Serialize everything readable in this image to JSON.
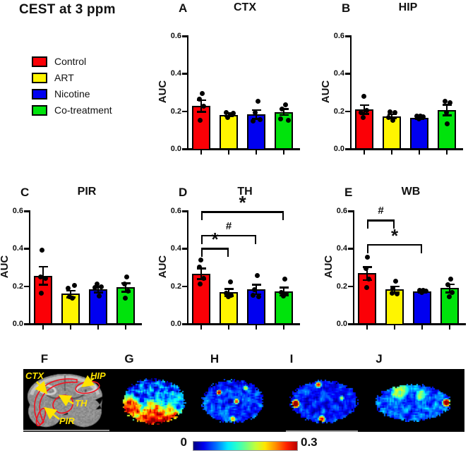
{
  "figure_title": "CEST at 3 ppm",
  "legend": {
    "items": [
      {
        "label": "Control",
        "color": "#fb0006"
      },
      {
        "label": "ART",
        "color": "#fff500"
      },
      {
        "label": "Nicotine",
        "color": "#0000f0"
      },
      {
        "label": "Co-treatment",
        "color": "#00e30c"
      }
    ]
  },
  "chart_data": [
    {
      "type": "bar",
      "panel": "A",
      "title": "CTX",
      "ylabel": "AUC",
      "ylim": [
        0,
        0.6
      ],
      "yticks": [
        "0.0",
        "0.2",
        "0.4",
        "0.6"
      ],
      "grid": false,
      "categories": [
        "Control",
        "ART",
        "Nicotine",
        "Co-treatment"
      ],
      "values": [
        0.225,
        0.178,
        0.18,
        0.193
      ],
      "sem": [
        0.031,
        0.008,
        0.023,
        0.016
      ],
      "points": [
        [
          [
            0.29,
            1
          ],
          [
            0.26,
            -3
          ],
          [
            0.225,
            3
          ],
          [
            0.15,
            -2
          ]
        ],
        [
          [
            0.19,
            -4
          ],
          [
            0.187,
            6
          ],
          [
            0.18,
            2
          ],
          [
            0.165,
            -2
          ]
        ],
        [
          [
            0.25,
            2
          ],
          [
            0.19,
            -2
          ],
          [
            0.152,
            5
          ],
          [
            0.145,
            -5
          ]
        ],
        [
          [
            0.23,
            2
          ],
          [
            0.21,
            -3
          ],
          [
            0.155,
            -5
          ],
          [
            0.15,
            6
          ]
        ]
      ],
      "brackets": []
    },
    {
      "type": "bar",
      "panel": "B",
      "title": "HIP",
      "ylabel": "AUC",
      "ylim": [
        0,
        0.6
      ],
      "yticks": [
        "0.0",
        "0.2",
        "0.4",
        "0.6"
      ],
      "grid": false,
      "categories": [
        "Control",
        "ART",
        "Nicotine",
        "Co-treatment"
      ],
      "values": [
        0.206,
        0.17,
        0.161,
        0.204
      ],
      "sem": [
        0.023,
        0.011,
        0.004,
        0.028
      ],
      "points": [
        [
          [
            0.275,
            -1
          ],
          [
            0.2,
            3
          ],
          [
            0.19,
            -5
          ],
          [
            0.165,
            -2
          ]
        ],
        [
          [
            0.195,
            -3
          ],
          [
            0.19,
            4
          ],
          [
            0.165,
            -5
          ],
          [
            0.15,
            1
          ]
        ],
        [
          [
            0.172,
            -4
          ],
          [
            0.17,
            1
          ],
          [
            0.168,
            5
          ],
          [
            0.155,
            -1
          ]
        ],
        [
          [
            0.25,
            -3
          ],
          [
            0.243,
            4
          ],
          [
            0.19,
            -1
          ],
          [
            0.13,
            0
          ]
        ]
      ],
      "brackets": []
    },
    {
      "type": "bar",
      "panel": "C",
      "title": "PIR",
      "ylabel": "AUC",
      "ylim": [
        0,
        0.6
      ],
      "yticks": [
        "0.0",
        "0.2",
        "0.4",
        "0.6"
      ],
      "grid": false,
      "categories": [
        "Control",
        "ART",
        "Nicotine",
        "Co-treatment"
      ],
      "values": [
        0.253,
        0.156,
        0.18,
        0.19
      ],
      "sem": [
        0.048,
        0.018,
        0.015,
        0.022
      ],
      "points": [
        [
          [
            0.39,
            -2
          ],
          [
            0.245,
            -4
          ],
          [
            0.24,
            3
          ],
          [
            0.16,
            -3
          ]
        ],
        [
          [
            0.2,
            5
          ],
          [
            0.185,
            -4
          ],
          [
            0.14,
            -2
          ],
          [
            0.135,
            2
          ]
        ],
        [
          [
            0.21,
            -2
          ],
          [
            0.195,
            4
          ],
          [
            0.19,
            -5
          ],
          [
            0.145,
            1
          ]
        ],
        [
          [
            0.245,
            1
          ],
          [
            0.21,
            -2
          ],
          [
            0.17,
            3
          ],
          [
            0.135,
            -1
          ]
        ]
      ],
      "brackets": []
    },
    {
      "type": "bar",
      "panel": "D",
      "title": "TH",
      "ylabel": "AUC",
      "ylim": [
        0,
        0.6
      ],
      "yticks": [
        "0.0",
        "0.2",
        "0.4",
        "0.6"
      ],
      "grid": false,
      "categories": [
        "Control",
        "ART",
        "Nicotine",
        "Co-treatment"
      ],
      "values": [
        0.264,
        0.164,
        0.18,
        0.169
      ],
      "sem": [
        0.028,
        0.019,
        0.025,
        0.021
      ],
      "points": [
        [
          [
            0.335,
            -1
          ],
          [
            0.3,
            -3
          ],
          [
            0.24,
            3
          ],
          [
            0.21,
            -2
          ]
        ],
        [
          [
            0.22,
            2
          ],
          [
            0.16,
            -4
          ],
          [
            0.15,
            3
          ],
          [
            0.14,
            -1
          ]
        ],
        [
          [
            0.255,
            1
          ],
          [
            0.18,
            -3
          ],
          [
            0.15,
            -5
          ],
          [
            0.14,
            3
          ]
        ],
        [
          [
            0.235,
            1
          ],
          [
            0.165,
            -4
          ],
          [
            0.155,
            3
          ],
          [
            0.145,
            -1
          ]
        ]
      ],
      "brackets": [
        {
          "from": 0,
          "to": 1,
          "y": 0.4,
          "label": "*"
        },
        {
          "from": 0,
          "to": 2,
          "y": 0.47,
          "label": "#"
        },
        {
          "from": 0,
          "to": 3,
          "y": 0.595,
          "label": "*"
        }
      ]
    },
    {
      "type": "bar",
      "panel": "E",
      "title": "WB",
      "ylabel": "AUC",
      "ylim": [
        0,
        0.6
      ],
      "yticks": [
        "0.0",
        "0.2",
        "0.4",
        "0.6"
      ],
      "grid": false,
      "categories": [
        "Control",
        "ART",
        "Nicotine",
        "Co-treatment"
      ],
      "values": [
        0.265,
        0.18,
        0.169,
        0.186
      ],
      "sem": [
        0.035,
        0.016,
        0.005,
        0.021
      ],
      "points": [
        [
          [
            0.35,
            0
          ],
          [
            0.29,
            -2
          ],
          [
            0.235,
            2
          ],
          [
            0.19,
            -1
          ]
        ],
        [
          [
            0.225,
            1
          ],
          [
            0.185,
            -3
          ],
          [
            0.16,
            -4
          ],
          [
            0.155,
            3
          ]
        ],
        [
          [
            0.175,
            -4
          ],
          [
            0.173,
            1
          ],
          [
            0.17,
            5
          ],
          [
            0.165,
            -1
          ]
        ],
        [
          [
            0.235,
            1
          ],
          [
            0.205,
            -3
          ],
          [
            0.165,
            3
          ],
          [
            0.14,
            -1
          ]
        ]
      ],
      "brackets": [
        {
          "from": 0,
          "to": 1,
          "y": 0.55,
          "label": "#"
        },
        {
          "from": 0,
          "to": 2,
          "y": 0.42,
          "label": "*"
        }
      ]
    }
  ],
  "image_row": {
    "panels": [
      {
        "letter": "F"
      },
      {
        "letter": "G"
      },
      {
        "letter": "H"
      },
      {
        "letter": "I"
      },
      {
        "letter": "J"
      }
    ],
    "anatomy_labels": {
      "ctx": "CTX",
      "hip": "HIP",
      "th": "TH",
      "pir": "PIR"
    },
    "colorbar": {
      "min": "0",
      "max": "0.3"
    }
  }
}
